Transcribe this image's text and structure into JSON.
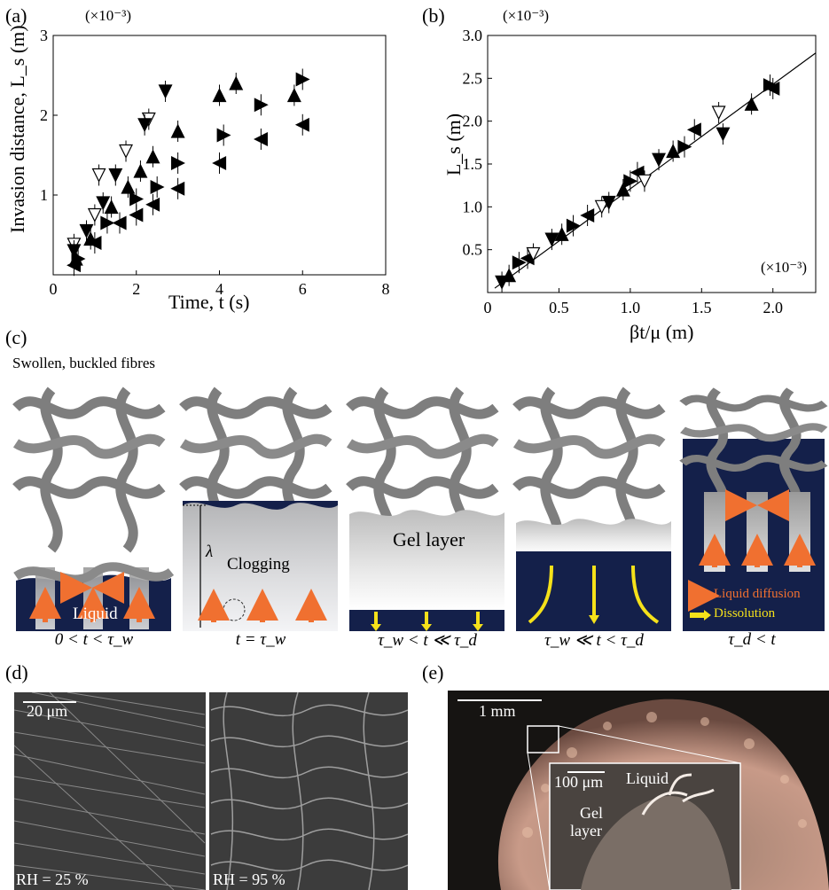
{
  "figure": {
    "panel_labels": {
      "a": "(a)",
      "b": "(b)",
      "c": "(c)",
      "d": "(d)",
      "e": "(e)"
    }
  },
  "chart_data": [
    {
      "type": "scatter",
      "panel": "(a)",
      "multiplier": "(×10⁻³)",
      "xlabel": "Time, t (s)",
      "ylabel": "Invasion distance, L_s (m)",
      "xlim": [
        0,
        8
      ],
      "ylim": [
        0,
        3
      ],
      "xticks": [
        "0",
        "2",
        "4",
        "6",
        "8"
      ],
      "yticks": [
        "1",
        "2",
        "3"
      ],
      "series": [
        {
          "marker": "down-open",
          "points": [
            [
              0.5,
              0.38
            ],
            [
              1.0,
              0.75
            ],
            [
              1.1,
              1.25
            ],
            [
              1.75,
              1.55
            ],
            [
              2.3,
              1.95
            ]
          ]
        },
        {
          "marker": "down-filled",
          "points": [
            [
              0.5,
              0.3
            ],
            [
              0.8,
              0.55
            ],
            [
              1.2,
              0.9
            ],
            [
              1.5,
              1.25
            ],
            [
              2.2,
              1.88
            ],
            [
              2.7,
              2.3
            ]
          ]
        },
        {
          "marker": "up-filled",
          "points": [
            [
              0.55,
              0.2
            ],
            [
              0.9,
              0.45
            ],
            [
              1.4,
              0.85
            ],
            [
              1.8,
              1.1
            ],
            [
              2.1,
              1.3
            ],
            [
              2.4,
              1.48
            ],
            [
              3.0,
              1.8
            ],
            [
              4.0,
              2.25
            ],
            [
              4.4,
              2.4
            ],
            [
              5.8,
              2.25
            ]
          ]
        },
        {
          "marker": "right-filled",
          "points": [
            [
              0.6,
              0.2
            ],
            [
              1.3,
              0.65
            ],
            [
              2.0,
              0.95
            ],
            [
              2.5,
              1.1
            ],
            [
              3.0,
              1.4
            ],
            [
              4.1,
              1.75
            ],
            [
              5.0,
              2.13
            ],
            [
              6.0,
              2.45
            ]
          ]
        },
        {
          "marker": "left-filled",
          "points": [
            [
              0.5,
              0.12
            ],
            [
              1.0,
              0.4
            ],
            [
              1.6,
              0.65
            ],
            [
              2.0,
              0.75
            ],
            [
              2.4,
              0.88
            ],
            [
              3.0,
              1.08
            ],
            [
              4.0,
              1.4
            ],
            [
              5.0,
              1.7
            ],
            [
              6.0,
              1.88
            ]
          ]
        }
      ]
    },
    {
      "type": "scatter",
      "panel": "(b)",
      "multiplier_top": "(×10⁻³)",
      "multiplier_x": "(×10⁻³)",
      "xlabel": "βt/μ (m)",
      "ylabel": "L_s (m)",
      "xlim": [
        0,
        2.3
      ],
      "ylim": [
        0,
        3.0
      ],
      "xticks": [
        "0",
        "0.5",
        "1.0",
        "1.5",
        "2.0"
      ],
      "yticks": [
        "0.5",
        "1.0",
        "1.5",
        "2.0",
        "2.5",
        "3.0"
      ],
      "fit_line": {
        "slope": 1.22,
        "intercept": -0.01
      },
      "points": [
        [
          0.1,
          0.12
        ],
        [
          0.15,
          0.2
        ],
        [
          0.22,
          0.35
        ],
        [
          0.28,
          0.4
        ],
        [
          0.32,
          0.45
        ],
        [
          0.45,
          0.62
        ],
        [
          0.52,
          0.68
        ],
        [
          0.6,
          0.78
        ],
        [
          0.7,
          0.9
        ],
        [
          0.8,
          1.0
        ],
        [
          0.85,
          1.05
        ],
        [
          0.95,
          1.2
        ],
        [
          1.0,
          1.3
        ],
        [
          1.05,
          1.4
        ],
        [
          1.1,
          1.3
        ],
        [
          1.2,
          1.55
        ],
        [
          1.3,
          1.65
        ],
        [
          1.38,
          1.7
        ],
        [
          1.45,
          1.9
        ],
        [
          1.62,
          2.1
        ],
        [
          1.65,
          1.85
        ],
        [
          1.85,
          2.2
        ],
        [
          1.98,
          2.42
        ],
        [
          2.0,
          2.38
        ]
      ]
    }
  ],
  "diagram": {
    "top_label": "Swollen, buckled fibres",
    "gel_layer": "Gel layer",
    "clogging": "Clogging",
    "lambda": "λ",
    "liquid": "Liquid",
    "legend_diffusion": "Liquid diffusion",
    "legend_dissolution": "Dissolution",
    "captions": [
      "0 < t < τ_w",
      "t = τ_w",
      "τ_w < t ≪ τ_d",
      "τ_w ≪ t < τ_d",
      "τ_d < t"
    ],
    "colors": {
      "fibre": "#808080",
      "liquid": "#14204a",
      "arrow_orange": "#f07030",
      "arrow_yellow": "#f5e11a"
    }
  },
  "panel_d": {
    "scale": "20 μm",
    "left_label": "RH = 25 %",
    "right_label": "RH = 95 %"
  },
  "panel_e": {
    "scale": "1 mm",
    "inset_scale": "100 μm",
    "liquid": "Liquid",
    "gel": "Gel",
    "layer": "layer"
  }
}
